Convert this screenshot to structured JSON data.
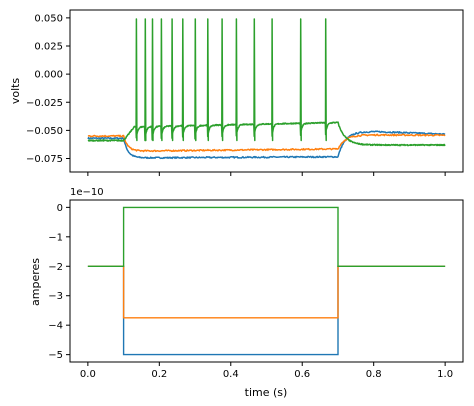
{
  "chart_data": [
    {
      "type": "line",
      "panel": "top",
      "xlabel": "",
      "ylabel": "volts",
      "xlim": [
        -0.05,
        1.05
      ],
      "ylim": [
        -0.087,
        0.057
      ],
      "yticks": [
        0.05,
        0.025,
        0.0,
        -0.025,
        -0.05,
        -0.075
      ],
      "ytick_labels": [
        "0.050",
        "0.025",
        "0.000",
        "−0.025",
        "−0.050",
        "−0.075"
      ],
      "xticks": [
        0.0,
        0.2,
        0.4,
        0.6,
        0.8,
        1.0
      ],
      "stim_window": [
        0.1,
        0.7
      ],
      "series": [
        {
          "color": "#1f77b4",
          "baseline": -0.057,
          "plateau_start": -0.0745,
          "plateau_end": -0.0735,
          "recovery": -0.051
        },
        {
          "color": "#ff7f0e",
          "baseline": -0.055,
          "plateau_start": -0.0685,
          "plateau_end": -0.0665,
          "recovery": -0.054
        },
        {
          "color": "#2ca02c",
          "baseline": -0.059,
          "baseline_spiking": -0.043,
          "after_stim": -0.063,
          "spike_times": [
            0.135,
            0.16,
            0.18,
            0.205,
            0.235,
            0.265,
            0.3,
            0.335,
            0.375,
            0.415,
            0.465,
            0.515,
            0.595,
            0.665
          ],
          "spike_peak": 0.049
        }
      ]
    },
    {
      "type": "line",
      "panel": "bottom",
      "xlabel": "time (s)",
      "ylabel": "amperes",
      "offset_text": "1e−10",
      "xlim": [
        -0.05,
        1.05
      ],
      "ylim": [
        -5.25,
        0.25
      ],
      "yticks": [
        0,
        -1,
        -2,
        -3,
        -4,
        -5
      ],
      "ytick_labels": [
        "0",
        "−1",
        "−2",
        "−3",
        "−4",
        "−5"
      ],
      "xticks": [
        0.0,
        0.2,
        0.4,
        0.6,
        0.8,
        1.0
      ],
      "xtick_labels": [
        "0.0",
        "0.2",
        "0.4",
        "0.6",
        "0.8",
        "1.0"
      ],
      "series": [
        {
          "color": "#1f77b4",
          "x": [
            0.0,
            0.1,
            0.1,
            0.7,
            0.7,
            1.0
          ],
          "y": [
            -2,
            -2,
            -5,
            -5,
            -2,
            -2
          ]
        },
        {
          "color": "#ff7f0e",
          "x": [
            0.0,
            0.1,
            0.1,
            0.7,
            0.7,
            1.0
          ],
          "y": [
            -2,
            -2,
            -3.75,
            -3.75,
            -2,
            -2
          ]
        },
        {
          "color": "#2ca02c",
          "x": [
            0.0,
            0.1,
            0.1,
            0.7,
            0.7,
            1.0
          ],
          "y": [
            -2,
            -2,
            0,
            0,
            -2,
            -2
          ]
        }
      ]
    }
  ]
}
